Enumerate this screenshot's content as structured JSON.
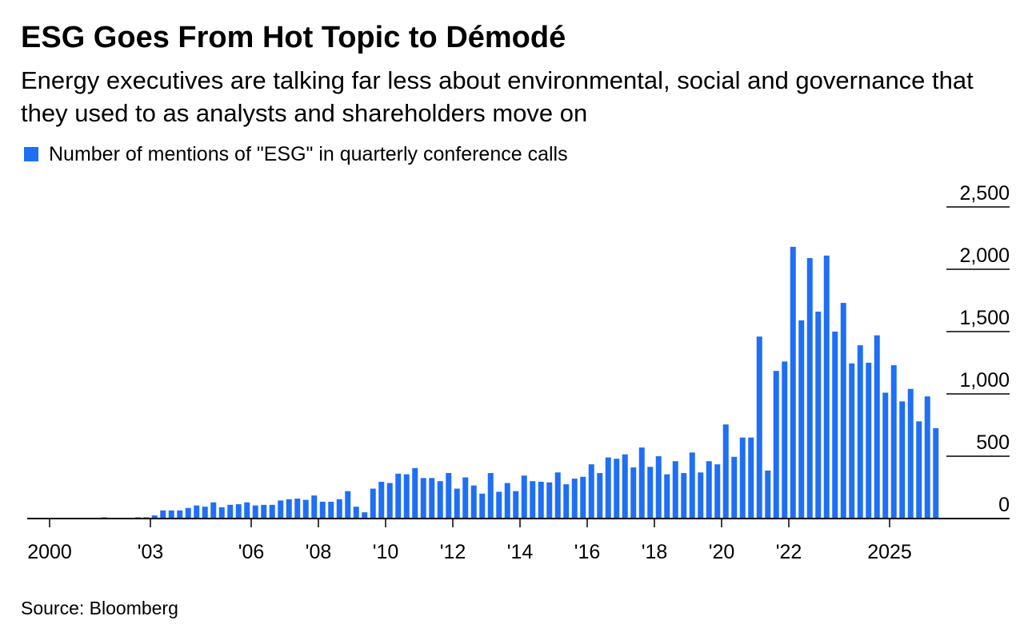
{
  "title": "ESG Goes From Hot Topic to Démodé",
  "subtitle": "Energy executives are talking far less about environmental, social and governance that they used to as analysts and shareholders move on",
  "source": "Source: Bloomberg",
  "colors": {
    "bar": "#1f6ff5",
    "axis": "#000000"
  },
  "chart_data": {
    "type": "bar",
    "title": "ESG Goes From Hot Topic to Démodé",
    "xlabel": "",
    "ylabel": "",
    "series_name": "Number of mentions of \"ESG\" in quarterly conference calls",
    "ylim": [
      0,
      2500
    ],
    "yticks": [
      0,
      500,
      1000,
      1500,
      2000,
      2500
    ],
    "ytick_labels": [
      "0",
      "500",
      "1,000",
      "1,500",
      "2,000",
      "2,500"
    ],
    "y_axis_side": "right",
    "xticks": [
      {
        "label": "2000",
        "year": 2000
      },
      {
        "label": "'03",
        "year": 2003
      },
      {
        "label": "'06",
        "year": 2006
      },
      {
        "label": "'08",
        "year": 2008
      },
      {
        "label": "'10",
        "year": 2010
      },
      {
        "label": "'12",
        "year": 2012
      },
      {
        "label": "'14",
        "year": 2014
      },
      {
        "label": "'16",
        "year": 2016
      },
      {
        "label": "'18",
        "year": 2018
      },
      {
        "label": "'20",
        "year": 2020
      },
      {
        "label": "'22",
        "year": 2022
      },
      {
        "label": "2025",
        "year": 2025
      }
    ],
    "start": "2000-Q1",
    "frequency": "quarterly",
    "values": [
      5,
      5,
      5,
      5,
      5,
      5,
      10,
      5,
      5,
      5,
      10,
      10,
      25,
      65,
      65,
      65,
      85,
      105,
      95,
      130,
      90,
      110,
      115,
      130,
      105,
      110,
      110,
      145,
      155,
      160,
      150,
      185,
      135,
      135,
      155,
      220,
      95,
      50,
      240,
      295,
      285,
      360,
      355,
      405,
      325,
      325,
      300,
      365,
      240,
      330,
      265,
      200,
      365,
      215,
      285,
      220,
      345,
      300,
      295,
      290,
      370,
      275,
      320,
      335,
      435,
      365,
      490,
      480,
      515,
      410,
      570,
      415,
      500,
      355,
      460,
      365,
      530,
      370,
      460,
      435,
      755,
      495,
      650,
      650,
      1460,
      385,
      1185,
      1260,
      2180,
      1590,
      2090,
      1660,
      2110,
      1500,
      1730,
      1245,
      1390,
      1250,
      1470,
      1010,
      1230,
      940,
      1040,
      780,
      980,
      725
    ]
  }
}
